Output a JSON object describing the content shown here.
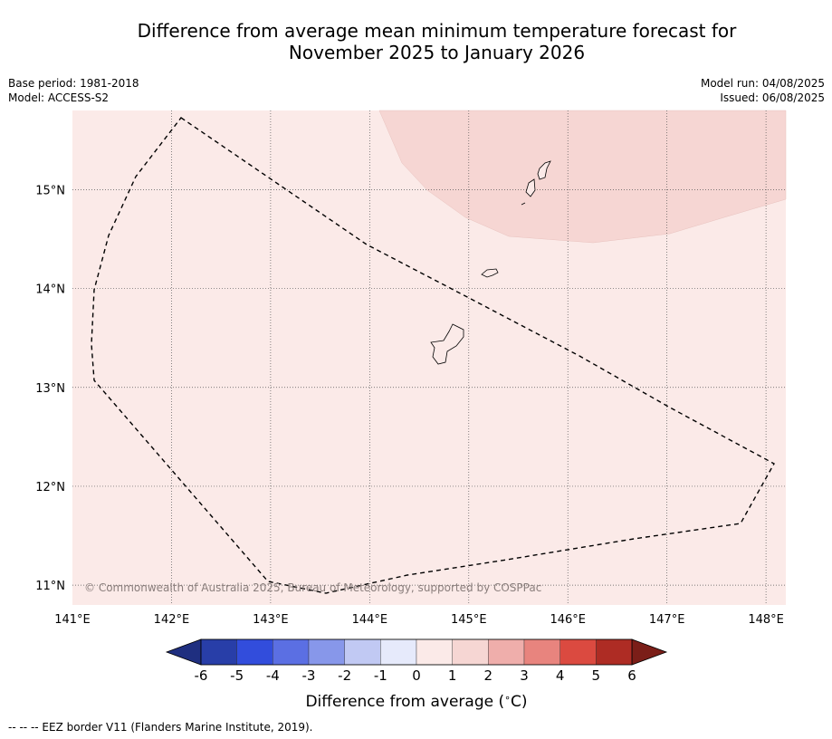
{
  "title": {
    "line1": "Difference from average mean minimum temperature forecast for",
    "line2": "November 2025 to January 2026"
  },
  "meta": {
    "base_period": "Base period: 1981-2018",
    "model": "Model: ACCESS-S2",
    "model_run": "Model run: 04/08/2025",
    "issued": "Issued: 06/08/2025"
  },
  "map": {
    "lon_labels": [
      "141°E",
      "142°E",
      "143°E",
      "144°E",
      "145°E",
      "146°E",
      "147°E",
      "148°E"
    ],
    "lat_labels": [
      "15°N",
      "14°N",
      "13°N",
      "12°N",
      "11°N"
    ],
    "lon_range": [
      141,
      148.2
    ],
    "lat_range": [
      10.8,
      15.8
    ],
    "background_color": "#fbeae8",
    "anomaly_region_color": "#f6d6d3",
    "copyright": "© Commonwealth of Australia 2025, Bureau of Meteorology, supported by COSPPac"
  },
  "colorbar": {
    "label": "Difference from average ($^\\circ$C)",
    "label_unit": "C)",
    "ticks": [
      "-6",
      "-5",
      "-4",
      "-3",
      "-2",
      "-1",
      "0",
      "1",
      "2",
      "3",
      "4",
      "5",
      "6"
    ],
    "colors": [
      "#283ea8",
      "#324ddc",
      "#5b6fe3",
      "#8797ea",
      "#c1c9f3",
      "#e6eafb",
      "#fbeae8",
      "#f6d6d3",
      "#efaeab",
      "#e8847e",
      "#db4a40",
      "#ae2c24"
    ],
    "under_color": "#1f2f80",
    "over_color": "#7b1e18"
  },
  "footnote": "--  --  -- EEZ border V11 (Flanders Marine Institute, 2019)."
}
